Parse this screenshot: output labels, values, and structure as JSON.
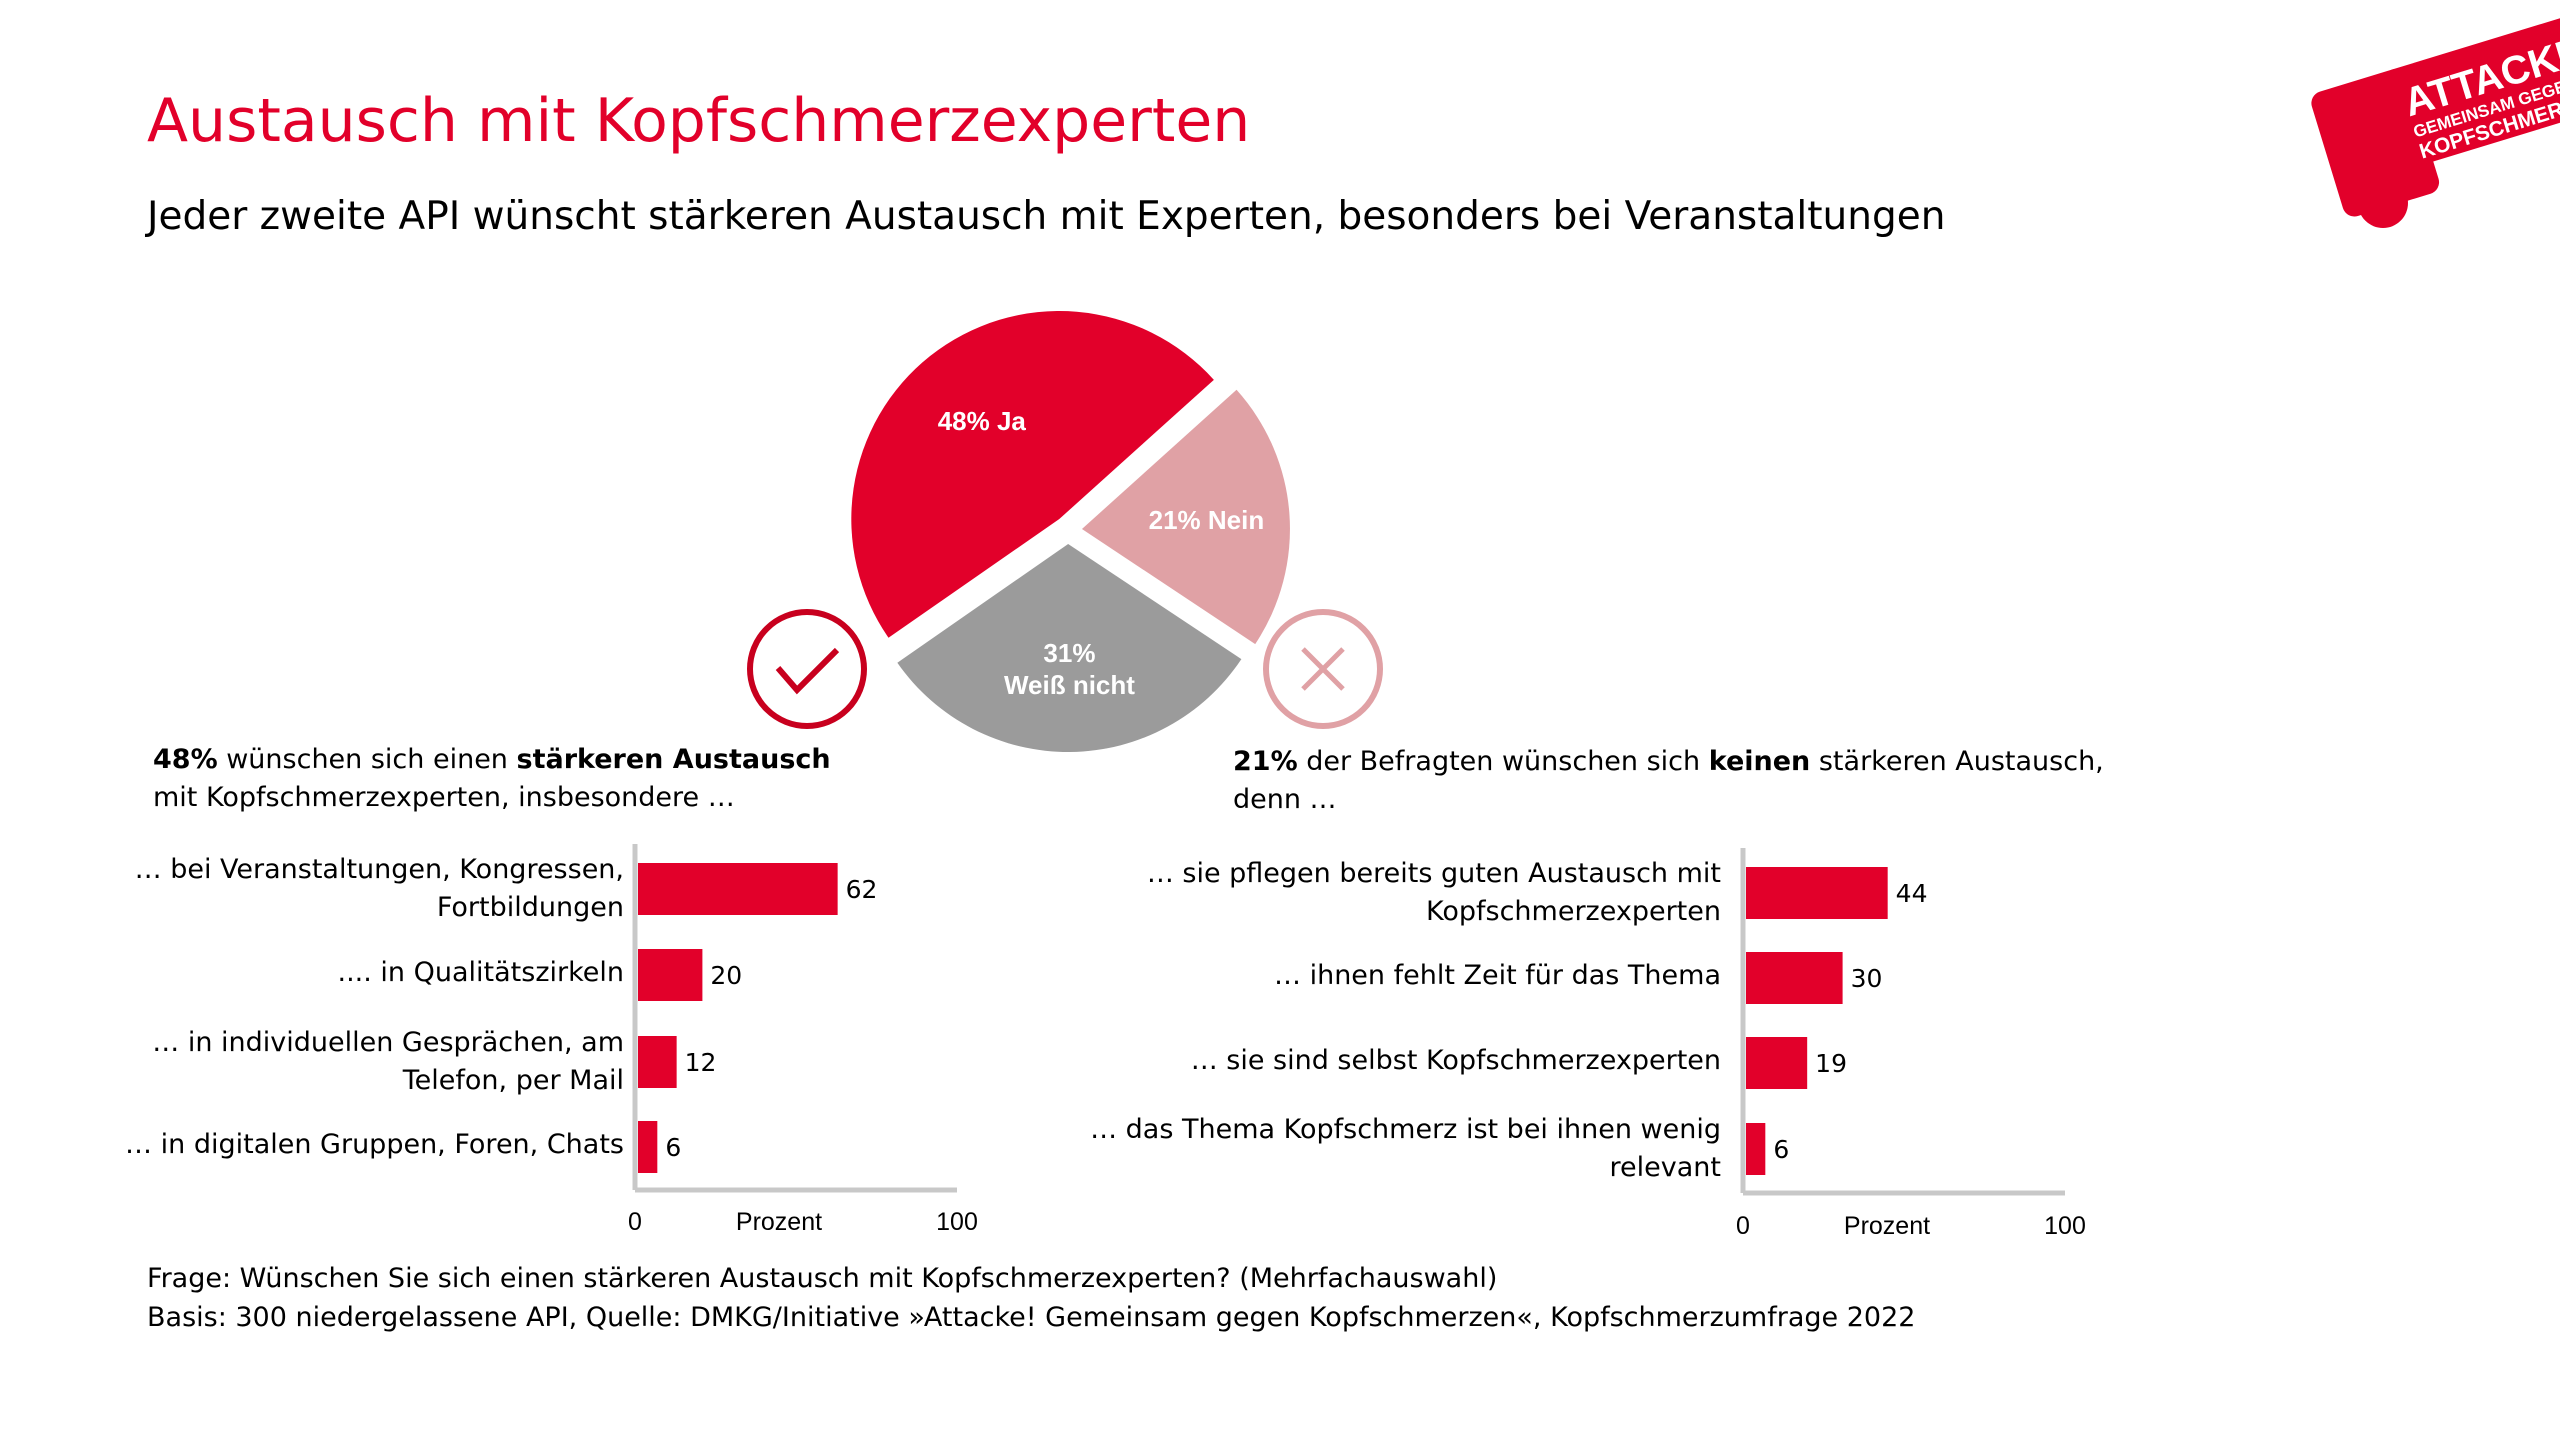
{
  "title": "Austausch mit Kopfschmerzexperten",
  "subtitle": "Jeder zweite API wünscht stärkeren Austausch mit Experten, besonders bei Veranstaltungen",
  "logo": {
    "text": [
      "ATTACKE",
      "GEMEINSAM GEGEN",
      "KOPFSCHMERZEN"
    ],
    "color": "#e2002a"
  },
  "icons": {
    "yes": "check-circle-icon",
    "no": "x-circle-icon"
  },
  "left_heading": {
    "bold1": "48%",
    "text1": " wünschen sich einen ",
    "bold2": "stärkeren Austausch",
    "text2": " mit Kopfschmerzexperten, insbesondere …"
  },
  "right_heading": {
    "bold1": "21%",
    "text1": " der Befragten wünschen sich ",
    "bold2": "keinen",
    "text2": " stärkeren Austausch, denn …"
  },
  "footer": {
    "line1": "Frage: Wünschen Sie sich einen stärkeren Austausch mit Kopfschmerzexperten? (Mehrfachauswahl)",
    "line2": "Basis: 300 niedergelassene API, Quelle: DMKG/Initiative »Attacke! Gemeinsam gegen Kopfschmerzen«, Kopfschmerzumfrage 2022"
  },
  "chart_data": [
    {
      "type": "pie",
      "slices": [
        {
          "label": "48% Ja",
          "value": 48,
          "color": "#e2002a"
        },
        {
          "label": "21% Nein",
          "value": 21,
          "color": "#e0a1a5"
        },
        {
          "label": "31% Weiß nicht",
          "label_lines": [
            "31%",
            "Weiß nicht"
          ],
          "value": 31,
          "color": "#9b9b9b"
        }
      ]
    },
    {
      "type": "bar",
      "orientation": "horizontal",
      "categories": [
        [
          "… bei Veranstaltungen, Kongressen,",
          "Fortbildungen"
        ],
        [
          ".... in Qualitätszirkeln"
        ],
        [
          "… in individuellen Gesprächen, am",
          "Telefon, per Mail"
        ],
        [
          "… in digitalen Gruppen, Foren, Chats"
        ]
      ],
      "values": [
        62,
        20,
        12,
        6
      ],
      "xlabel": "Prozent",
      "xlim": [
        0,
        100
      ],
      "ticks": [
        "0",
        "100"
      ],
      "color": "#e2002a"
    },
    {
      "type": "bar",
      "orientation": "horizontal",
      "categories": [
        [
          "… sie pflegen bereits guten Austausch mit",
          "Kopfschmerzexperten"
        ],
        [
          "… ihnen fehlt Zeit für das Thema"
        ],
        [
          "… sie sind selbst Kopfschmerzexperten"
        ],
        [
          "… das Thema Kopfschmerz ist bei ihnen wenig",
          "relevant"
        ]
      ],
      "values": [
        44,
        30,
        19,
        6
      ],
      "xlabel": "Prozent",
      "xlim": [
        0,
        100
      ],
      "ticks": [
        "0",
        "100"
      ],
      "color": "#e2002a"
    }
  ]
}
